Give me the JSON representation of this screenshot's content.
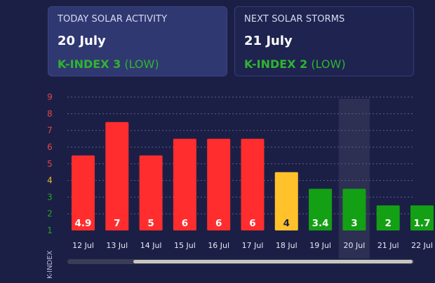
{
  "today": {
    "heading": "TODAY SOLAR ACTIVITY",
    "date": "20 July",
    "kindex_label": "K-INDEX 3",
    "kindex_level": "(LOW)"
  },
  "next": {
    "heading": "NEXT SOLAR STORMS",
    "date": "21 July",
    "kindex_label": "K-INDEX 2",
    "kindex_level": "(LOW)"
  },
  "chart_data": {
    "type": "bar",
    "categories": [
      "12 Jul",
      "13 Jul",
      "14 Jul",
      "15 Jul",
      "16 Jul",
      "17 Jul",
      "18 Jul",
      "19 Jul",
      "20 Jul",
      "21 Jul",
      "22 Jul"
    ],
    "values": [
      4.9,
      7,
      5,
      6,
      6,
      6,
      4,
      3.4,
      3,
      2,
      1.7
    ],
    "bar_values": [
      5.5,
      7.5,
      5.5,
      6.5,
      6.5,
      6.5,
      4.5,
      3.5,
      3.5,
      2.5,
      2.5
    ],
    "labels": [
      "4.9",
      "7",
      "5",
      "6",
      "6",
      "6",
      "4",
      "3.4",
      "3",
      "2",
      "1.7"
    ],
    "bar_colors": [
      "#ff2d2d",
      "#ff2d2d",
      "#ff2d2d",
      "#ff2d2d",
      "#ff2d2d",
      "#ff2d2d",
      "#ffc22a",
      "#14a014",
      "#14a014",
      "#14a014",
      "#14a014"
    ],
    "yticks": [
      "1",
      "2",
      "3",
      "4",
      "5",
      "6",
      "7",
      "8",
      "9"
    ],
    "ytick_colors": [
      "#22a822",
      "#22a822",
      "#22a822",
      "#e8b830",
      "#e84545",
      "#e84545",
      "#e84545",
      "#e84545",
      "#e84545"
    ],
    "ylabel": "K-INDEX",
    "ylim": [
      1,
      9
    ],
    "highlight_category": "20 Jul",
    "grid": true
  }
}
